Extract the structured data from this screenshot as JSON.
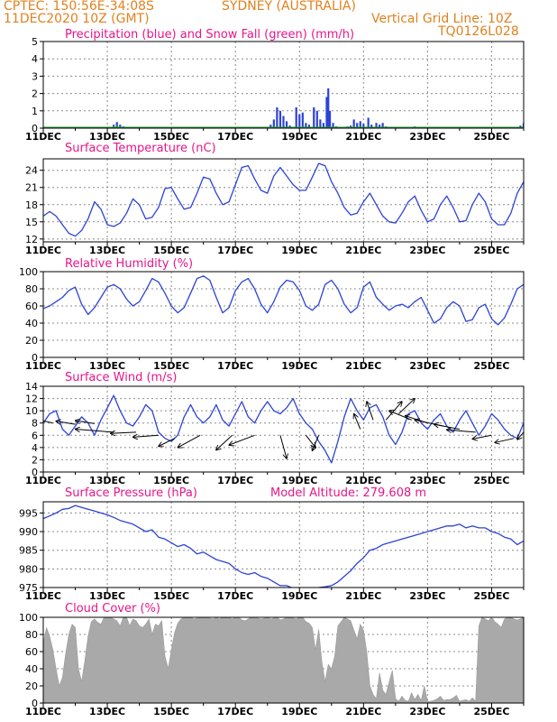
{
  "header": {
    "line1_left": "CPTEC:   150:56E-34:08S",
    "line1_mid": "SYDNEY (AUSTRALIA)",
    "line2_left": "11DEC2020 10Z (GMT)",
    "line2_right": "Vertical Grid Line: 10Z",
    "line3_right": "TQ0126L028"
  },
  "colors": {
    "header": "#e0811e",
    "title": "#e6168a",
    "line": "#2c43d8",
    "snow": "#1e9a2e",
    "cloud": "#a9a9a9"
  },
  "x_dates": [
    "11DEC",
    "13DEC",
    "15DEC",
    "17DEC",
    "19DEC",
    "21DEC",
    "23DEC",
    "25DEC"
  ],
  "chart_data": [
    {
      "type": "bar",
      "title": "Precipitation (blue) and Snow Fall (green) (mm/h)",
      "x_unit": "day offset from 11DEC 10Z",
      "ylim": [
        0,
        5
      ],
      "yticks": [
        0,
        1,
        2,
        3,
        4,
        5
      ],
      "series": [
        {
          "values": [
            [
              2.2,
              0.2
            ],
            [
              2.3,
              0.35
            ],
            [
              2.4,
              0.2
            ],
            [
              2.5,
              0.1
            ],
            [
              7.1,
              0.2
            ],
            [
              7.2,
              0.5
            ],
            [
              7.3,
              1.2
            ],
            [
              7.4,
              1.0
            ],
            [
              7.5,
              0.7
            ],
            [
              7.6,
              0.4
            ],
            [
              7.7,
              0.15
            ],
            [
              7.9,
              1.2
            ],
            [
              8.0,
              0.8
            ],
            [
              8.1,
              0.9
            ],
            [
              8.2,
              0.3
            ],
            [
              8.3,
              0.2
            ],
            [
              8.45,
              1.2
            ],
            [
              8.55,
              1.0
            ],
            [
              8.65,
              0.5
            ],
            [
              8.75,
              0.3
            ],
            [
              8.85,
              1.8
            ],
            [
              8.9,
              2.3
            ],
            [
              8.95,
              1.0
            ],
            [
              9.05,
              0.3
            ],
            [
              9.15,
              0.1
            ],
            [
              9.5,
              0.1
            ],
            [
              9.6,
              0.15
            ],
            [
              9.7,
              0.5
            ],
            [
              9.8,
              0.3
            ],
            [
              9.9,
              0.4
            ],
            [
              10.0,
              0.25
            ],
            [
              10.15,
              0.6
            ],
            [
              10.25,
              0.2
            ],
            [
              10.4,
              0.3
            ],
            [
              10.5,
              0.2
            ],
            [
              10.6,
              0.3
            ],
            [
              10.7,
              0.1
            ],
            [
              11.6,
              0.1
            ],
            [
              14.9,
              0.15
            ],
            [
              15.0,
              0.3
            ],
            [
              15.1,
              0.2
            ]
          ]
        },
        {
          "values": [
            [
              0.0,
              0.05
            ],
            [
              2.2,
              0.1
            ],
            [
              2.3,
              0.15
            ],
            [
              9.9,
              0.1
            ],
            [
              12.0,
              0.05
            ],
            [
              14.9,
              0.05
            ]
          ]
        }
      ]
    },
    {
      "type": "line",
      "title": "Surface Temperature (nC)",
      "ylim": [
        11.5,
        26
      ],
      "yticks": [
        12,
        15,
        18,
        21,
        24
      ],
      "x": [
        0.0,
        0.2,
        0.4,
        0.6,
        0.8,
        1.0,
        1.2,
        1.4,
        1.6,
        1.8,
        2.0,
        2.2,
        2.4,
        2.6,
        2.8,
        3.0,
        3.2,
        3.4,
        3.6,
        3.8,
        4.0,
        4.2,
        4.4,
        4.6,
        4.8,
        5.0,
        5.2,
        5.4,
        5.6,
        5.8,
        6.0,
        6.2,
        6.4,
        6.6,
        6.8,
        7.0,
        7.2,
        7.4,
        7.6,
        7.8,
        8.0,
        8.2,
        8.4,
        8.6,
        8.8,
        9.0,
        9.2,
        9.4,
        9.6,
        9.8,
        10.0,
        10.2,
        10.4,
        10.6,
        10.8,
        11.0,
        11.2,
        11.4,
        11.6,
        11.8,
        12.0,
        12.2,
        12.4,
        12.6,
        12.8,
        13.0,
        13.2,
        13.4,
        13.6,
        13.8,
        14.0,
        14.2,
        14.4,
        14.6,
        14.8,
        15.0
      ],
      "y": [
        16.0,
        16.8,
        16.0,
        14.5,
        13.0,
        12.5,
        13.5,
        15.5,
        18.5,
        17.2,
        14.5,
        14.2,
        14.8,
        16.5,
        19.0,
        18.0,
        15.5,
        15.8,
        17.5,
        20.8,
        21.0,
        19.0,
        17.2,
        17.5,
        20.0,
        22.8,
        22.5,
        20.0,
        18.0,
        18.5,
        21.5,
        24.5,
        24.8,
        22.5,
        20.5,
        20.0,
        23.0,
        24.5,
        23.0,
        21.5,
        20.5,
        20.5,
        22.8,
        25.2,
        24.8,
        22.0,
        20.0,
        17.5,
        16.2,
        16.5,
        18.5,
        20.0,
        18.0,
        16.0,
        15.0,
        14.8,
        16.5,
        18.5,
        19.5,
        17.0,
        15.0,
        15.5,
        18.0,
        19.5,
        17.5,
        15.0,
        15.2,
        18.0,
        20.0,
        18.5,
        15.5,
        14.5,
        14.5,
        16.5,
        20.0,
        22.0
      ],
      "xlabel": "",
      "ylabel": ""
    },
    {
      "type": "line",
      "title": "Relative Humidity (%)",
      "ylim": [
        0,
        100
      ],
      "yticks": [
        0,
        20,
        40,
        60,
        80,
        100
      ],
      "x": [
        0.0,
        0.2,
        0.4,
        0.6,
        0.8,
        1.0,
        1.2,
        1.4,
        1.6,
        1.8,
        2.0,
        2.2,
        2.4,
        2.6,
        2.8,
        3.0,
        3.2,
        3.4,
        3.6,
        3.8,
        4.0,
        4.2,
        4.4,
        4.6,
        4.8,
        5.0,
        5.2,
        5.4,
        5.6,
        5.8,
        6.0,
        6.2,
        6.4,
        6.6,
        6.8,
        7.0,
        7.2,
        7.4,
        7.6,
        7.8,
        8.0,
        8.2,
        8.4,
        8.6,
        8.8,
        9.0,
        9.2,
        9.4,
        9.6,
        9.8,
        10.0,
        10.2,
        10.4,
        10.6,
        10.8,
        11.0,
        11.2,
        11.4,
        11.6,
        11.8,
        12.0,
        12.2,
        12.4,
        12.6,
        12.8,
        13.0,
        13.2,
        13.4,
        13.6,
        13.8,
        14.0,
        14.2,
        14.4,
        14.6,
        14.8,
        15.0
      ],
      "y": [
        57,
        60,
        65,
        70,
        78,
        82,
        62,
        50,
        58,
        70,
        82,
        85,
        80,
        68,
        60,
        65,
        78,
        92,
        88,
        75,
        60,
        52,
        58,
        75,
        92,
        95,
        90,
        70,
        52,
        58,
        78,
        88,
        92,
        80,
        62,
        52,
        65,
        82,
        90,
        88,
        78,
        60,
        55,
        62,
        85,
        90,
        80,
        62,
        52,
        58,
        82,
        88,
        70,
        62,
        55,
        60,
        62,
        58,
        65,
        70,
        55,
        40,
        45,
        58,
        65,
        60,
        42,
        44,
        58,
        62,
        45,
        38,
        46,
        62,
        80,
        85
      ],
      "xlabel": "",
      "ylabel": ""
    },
    {
      "type": "line",
      "title": "Surface Wind (m/s)",
      "ylim": [
        0,
        14
      ],
      "yticks": [
        0,
        2,
        4,
        6,
        8,
        10,
        12,
        14
      ],
      "x": [
        0.0,
        0.2,
        0.4,
        0.6,
        0.8,
        1.0,
        1.2,
        1.4,
        1.6,
        1.8,
        2.0,
        2.2,
        2.4,
        2.6,
        2.8,
        3.0,
        3.2,
        3.4,
        3.6,
        3.8,
        4.0,
        4.2,
        4.4,
        4.6,
        4.8,
        5.0,
        5.2,
        5.4,
        5.6,
        5.8,
        6.0,
        6.2,
        6.4,
        6.6,
        6.8,
        7.0,
        7.2,
        7.4,
        7.6,
        7.8,
        8.0,
        8.2,
        8.4,
        8.6,
        8.8,
        9.0,
        9.2,
        9.4,
        9.6,
        9.8,
        10.0,
        10.2,
        10.4,
        10.6,
        10.8,
        11.0,
        11.2,
        11.4,
        11.6,
        11.8,
        12.0,
        12.2,
        12.4,
        12.6,
        12.8,
        13.0,
        13.2,
        13.4,
        13.6,
        13.8,
        14.0,
        14.2,
        14.4,
        14.6,
        14.8,
        15.0
      ],
      "y": [
        8.0,
        9.5,
        10.0,
        7.0,
        6.0,
        7.5,
        9.0,
        8.0,
        6.0,
        8.5,
        10.5,
        12.5,
        10.0,
        8.0,
        7.5,
        9.0,
        11.0,
        10.0,
        6.5,
        5.5,
        5.0,
        6.0,
        9.0,
        11.0,
        9.0,
        8.0,
        9.0,
        11.0,
        8.5,
        7.5,
        9.5,
        11.5,
        9.0,
        8.0,
        10.0,
        11.5,
        10.0,
        9.5,
        10.5,
        12.0,
        9.5,
        8.0,
        7.0,
        5.0,
        3.5,
        1.5,
        5.0,
        9.0,
        12.0,
        10.0,
        8.5,
        10.5,
        11.0,
        9.0,
        6.0,
        4.5,
        6.5,
        9.5,
        10.0,
        8.0,
        7.0,
        8.5,
        9.5,
        7.5,
        6.5,
        8.5,
        10.0,
        8.0,
        6.0,
        7.5,
        9.5,
        8.5,
        7.0,
        6.0,
        5.5,
        8.0
      ],
      "vectors": [
        [
          0.3,
          8.0,
          -0.7,
          0.8
        ],
        [
          1.0,
          7.8,
          -0.6,
          0.5
        ],
        [
          1.6,
          7.9,
          -0.6,
          0.5
        ],
        [
          2.2,
          6.5,
          -1.2,
          0.5
        ],
        [
          2.9,
          6.5,
          -0.8,
          -0.2
        ],
        [
          3.6,
          6.0,
          -0.8,
          -0.3
        ],
        [
          4.1,
          5.5,
          -0.5,
          -1.3
        ],
        [
          4.9,
          6.0,
          -0.7,
          -2.0
        ],
        [
          5.9,
          6.0,
          -0.5,
          -2.4
        ],
        [
          6.6,
          6.0,
          -0.8,
          -1.6
        ],
        [
          7.4,
          6.0,
          0.2,
          -3.8
        ],
        [
          8.2,
          6.0,
          0.3,
          -2.0
        ],
        [
          8.6,
          6.0,
          -0.2,
          -2.5
        ],
        [
          9.9,
          7.0,
          -0.2,
          2.5
        ],
        [
          10.3,
          8.5,
          -0.2,
          3.0
        ],
        [
          10.7,
          8.5,
          0.5,
          3.0
        ],
        [
          11.1,
          9.5,
          0.5,
          2.5
        ],
        [
          11.5,
          8.5,
          -0.7,
          1.5
        ],
        [
          12.0,
          8.0,
          -0.7,
          1.2
        ],
        [
          12.5,
          7.5,
          -0.9,
          1.0
        ],
        [
          13.0,
          7.0,
          -0.8,
          0.8
        ],
        [
          13.5,
          6.5,
          -0.9,
          0.4
        ],
        [
          14.0,
          6.0,
          -0.6,
          -0.6
        ],
        [
          14.7,
          5.5,
          -0.6,
          -0.7
        ],
        [
          15.0,
          6.5,
          -0.2,
          -1.2
        ]
      ],
      "xlabel": "",
      "ylabel": ""
    },
    {
      "type": "line",
      "title": "Surface Pressure (hPa)",
      "annotation": "Model Altitude: 279.608  m",
      "ylim": [
        975,
        998
      ],
      "yticks": [
        975,
        980,
        985,
        990,
        995
      ],
      "x": [
        0.0,
        0.2,
        0.4,
        0.6,
        0.8,
        1.0,
        1.2,
        1.4,
        1.6,
        1.8,
        2.0,
        2.2,
        2.4,
        2.6,
        2.8,
        3.0,
        3.2,
        3.4,
        3.6,
        3.8,
        4.0,
        4.2,
        4.4,
        4.6,
        4.8,
        5.0,
        5.2,
        5.4,
        5.6,
        5.8,
        6.0,
        6.2,
        6.4,
        6.6,
        6.8,
        7.0,
        7.2,
        7.4,
        7.6,
        7.8,
        8.0,
        8.2,
        8.4,
        8.6,
        8.8,
        9.0,
        9.2,
        9.4,
        9.6,
        9.8,
        10.0,
        10.2,
        10.4,
        10.6,
        10.8,
        11.0,
        11.2,
        11.4,
        11.6,
        11.8,
        12.0,
        12.2,
        12.4,
        12.6,
        12.8,
        13.0,
        13.2,
        13.4,
        13.6,
        13.8,
        14.0,
        14.2,
        14.4,
        14.6,
        14.8,
        15.0
      ],
      "y": [
        993.5,
        994.2,
        995.0,
        996.0,
        996.2,
        997.0,
        996.5,
        996.0,
        995.5,
        995.0,
        994.5,
        993.8,
        993.0,
        992.5,
        992.0,
        991.0,
        990.0,
        990.5,
        988.5,
        988.0,
        987.0,
        986.0,
        986.5,
        985.5,
        984.0,
        984.5,
        983.5,
        982.5,
        982.0,
        981.5,
        980.0,
        979.0,
        978.5,
        979.0,
        978.0,
        977.5,
        976.5,
        975.5,
        975.5,
        974.8,
        975.0,
        974.5,
        974.8,
        975.0,
        975.2,
        975.5,
        976.5,
        978.0,
        979.5,
        981.5,
        983.0,
        985.0,
        985.5,
        986.5,
        987.0,
        987.5,
        988.0,
        988.5,
        989.0,
        989.5,
        990.0,
        990.5,
        991.0,
        991.5,
        991.5,
        992.0,
        991.0,
        991.5,
        991.0,
        991.0,
        990.0,
        989.5,
        988.5,
        988.0,
        986.5,
        987.5
      ],
      "xlabel": "",
      "ylabel": ""
    },
    {
      "type": "area",
      "title": "Cloud Cover (%)",
      "ylim": [
        0,
        100
      ],
      "yticks": [
        0,
        20,
        40,
        60,
        80,
        100
      ],
      "x": [
        0.0,
        0.1,
        0.2,
        0.3,
        0.4,
        0.5,
        0.6,
        0.7,
        0.8,
        0.9,
        1.0,
        1.1,
        1.2,
        1.3,
        1.4,
        1.5,
        1.6,
        1.7,
        1.8,
        1.9,
        2.0,
        2.1,
        2.2,
        2.3,
        2.4,
        2.5,
        2.6,
        2.7,
        2.8,
        2.9,
        3.0,
        3.1,
        3.2,
        3.3,
        3.4,
        3.5,
        3.6,
        3.7,
        3.8,
        3.9,
        4.0,
        4.1,
        4.2,
        4.3,
        4.4,
        4.5,
        4.6,
        4.7,
        4.8,
        4.9,
        5.0,
        5.1,
        5.2,
        5.3,
        5.4,
        5.5,
        5.6,
        5.7,
        5.8,
        5.9,
        6.0,
        6.1,
        6.2,
        6.3,
        6.4,
        6.5,
        6.6,
        6.7,
        6.8,
        6.9,
        7.0,
        7.1,
        7.2,
        7.3,
        7.4,
        7.5,
        7.6,
        7.7,
        7.8,
        7.9,
        8.0,
        8.1,
        8.2,
        8.3,
        8.4,
        8.5,
        8.6,
        8.7,
        8.8,
        8.9,
        9.0,
        9.1,
        9.2,
        9.3,
        9.4,
        9.5,
        9.6,
        9.7,
        9.8,
        9.9,
        10.0,
        10.1,
        10.2,
        10.3,
        10.4,
        10.5,
        10.6,
        10.7,
        10.8,
        10.9,
        11.0,
        11.1,
        11.2,
        11.3,
        11.4,
        11.5,
        11.6,
        11.7,
        11.8,
        11.9,
        12.0,
        12.1,
        12.2,
        12.3,
        12.4,
        12.5,
        12.6,
        12.7,
        12.8,
        12.9,
        13.0,
        13.1,
        13.2,
        13.3,
        13.4,
        13.5,
        13.6,
        13.7,
        13.8,
        13.9,
        14.0,
        14.1,
        14.2,
        14.3,
        14.4,
        14.5,
        14.6,
        14.7,
        14.8,
        14.9,
        15.0
      ],
      "y": [
        70,
        88,
        78,
        62,
        40,
        20,
        30,
        58,
        80,
        92,
        88,
        40,
        25,
        50,
        78,
        95,
        98,
        94,
        92,
        100,
        100,
        100,
        98,
        96,
        90,
        100,
        100,
        90,
        98,
        96,
        90,
        88,
        92,
        98,
        80,
        92,
        90,
        96,
        55,
        40,
        62,
        82,
        93,
        98,
        100,
        100,
        100,
        98,
        99,
        100,
        100,
        100,
        99,
        98,
        100,
        98,
        100,
        100,
        100,
        98,
        100,
        100,
        97,
        96,
        98,
        100,
        100,
        99,
        98,
        99,
        100,
        98,
        99,
        100,
        97,
        98,
        100,
        100,
        99,
        98,
        100,
        100,
        95,
        93,
        88,
        62,
        86,
        48,
        25,
        45,
        40,
        55,
        90,
        95,
        100,
        98,
        96,
        85,
        75,
        92,
        85,
        60,
        20,
        10,
        5,
        35,
        15,
        10,
        25,
        38,
        5,
        2,
        8,
        3,
        2,
        12,
        4,
        10,
        3,
        20,
        2,
        2,
        3,
        5,
        8,
        3,
        4,
        4,
        6,
        9,
        2,
        3,
        4,
        2,
        6,
        2,
        90,
        100,
        98,
        96,
        100,
        95,
        92,
        88,
        98,
        100,
        100,
        98,
        97,
        98,
        100
      ],
      "xlabel": "",
      "ylabel": ""
    }
  ]
}
